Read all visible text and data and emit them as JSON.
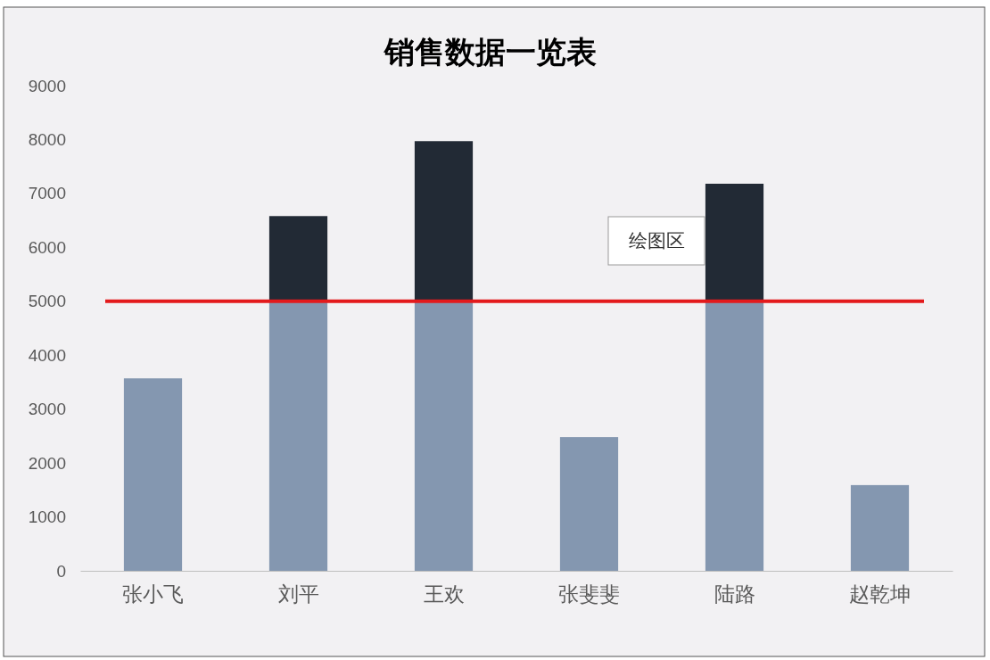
{
  "chart_data": {
    "type": "bar",
    "title": "销售数据一览表",
    "stacked": true,
    "categories": [
      "张小飞",
      "刘平",
      "王欢",
      "张斐斐",
      "陆路",
      "赵乾坤"
    ],
    "series": [
      {
        "color": "#8497b0",
        "values": [
          3570,
          5000,
          5000,
          2480,
          5000,
          1590
        ]
      },
      {
        "color": "#222a35",
        "values": [
          null,
          1580,
          2970,
          null,
          2180,
          null
        ]
      }
    ],
    "ylim": [
      0,
      9000
    ],
    "yticks": [
      0,
      1000,
      2000,
      3000,
      4000,
      5000,
      6000,
      7000,
      8000,
      9000
    ],
    "ref_lines": [
      {
        "axis": "y",
        "value": 5000,
        "color": "#e31a1c"
      }
    ],
    "annotations": [
      "绘图区"
    ]
  }
}
